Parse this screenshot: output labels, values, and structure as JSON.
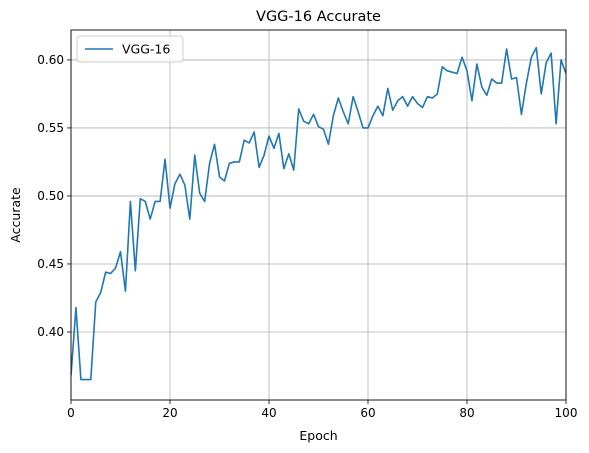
{
  "chart_data": {
    "type": "line",
    "title": "VGG-16 Accurate",
    "xlabel": "Epoch",
    "ylabel": "Accurate",
    "xlim": [
      0,
      100
    ],
    "ylim": [
      0.35,
      0.622
    ],
    "xticks": [
      0,
      20,
      40,
      60,
      80,
      100
    ],
    "xtick_labels": [
      "0",
      "20",
      "40",
      "60",
      "80",
      "100"
    ],
    "yticks": [
      0.4,
      0.45,
      0.5,
      0.55,
      0.6
    ],
    "ytick_labels": [
      "0.40",
      "0.45",
      "0.50",
      "0.55",
      "0.60"
    ],
    "grid": true,
    "legend": "top-left",
    "series": [
      {
        "name": "VGG-16",
        "color": "#1f77b4",
        "x": [
          0,
          1,
          2,
          3,
          4,
          5,
          6,
          7,
          8,
          9,
          10,
          11,
          12,
          13,
          14,
          15,
          16,
          17,
          18,
          19,
          20,
          21,
          22,
          23,
          24,
          25,
          26,
          27,
          28,
          29,
          30,
          31,
          32,
          33,
          34,
          35,
          36,
          37,
          38,
          39,
          40,
          41,
          42,
          43,
          44,
          45,
          46,
          47,
          48,
          49,
          50,
          51,
          52,
          53,
          54,
          55,
          56,
          57,
          58,
          59,
          60,
          61,
          62,
          63,
          64,
          65,
          66,
          67,
          68,
          69,
          70,
          71,
          72,
          73,
          74,
          75,
          76,
          77,
          78,
          79,
          80,
          81,
          82,
          83,
          84,
          85,
          86,
          87,
          88,
          89,
          90,
          91,
          92,
          93,
          94,
          95,
          96,
          97,
          98,
          99,
          100
        ],
        "values": [
          0.368,
          0.418,
          0.365,
          0.365,
          0.365,
          0.422,
          0.429,
          0.444,
          0.443,
          0.447,
          0.459,
          0.43,
          0.496,
          0.445,
          0.498,
          0.496,
          0.483,
          0.496,
          0.496,
          0.527,
          0.491,
          0.509,
          0.516,
          0.508,
          0.483,
          0.53,
          0.502,
          0.496,
          0.524,
          0.538,
          0.514,
          0.511,
          0.524,
          0.525,
          0.525,
          0.541,
          0.539,
          0.547,
          0.521,
          0.53,
          0.544,
          0.535,
          0.546,
          0.52,
          0.531,
          0.519,
          0.564,
          0.555,
          0.553,
          0.56,
          0.551,
          0.549,
          0.538,
          0.559,
          0.572,
          0.562,
          0.553,
          0.573,
          0.562,
          0.55,
          0.55,
          0.559,
          0.566,
          0.559,
          0.579,
          0.563,
          0.57,
          0.573,
          0.566,
          0.573,
          0.568,
          0.565,
          0.573,
          0.572,
          0.575,
          0.595,
          0.592,
          0.591,
          0.59,
          0.602,
          0.592,
          0.57,
          0.597,
          0.58,
          0.574,
          0.586,
          0.583,
          0.583,
          0.608,
          0.586,
          0.587,
          0.56,
          0.583,
          0.602,
          0.609,
          0.575,
          0.598,
          0.605,
          0.553,
          0.6,
          0.59
        ]
      }
    ]
  }
}
